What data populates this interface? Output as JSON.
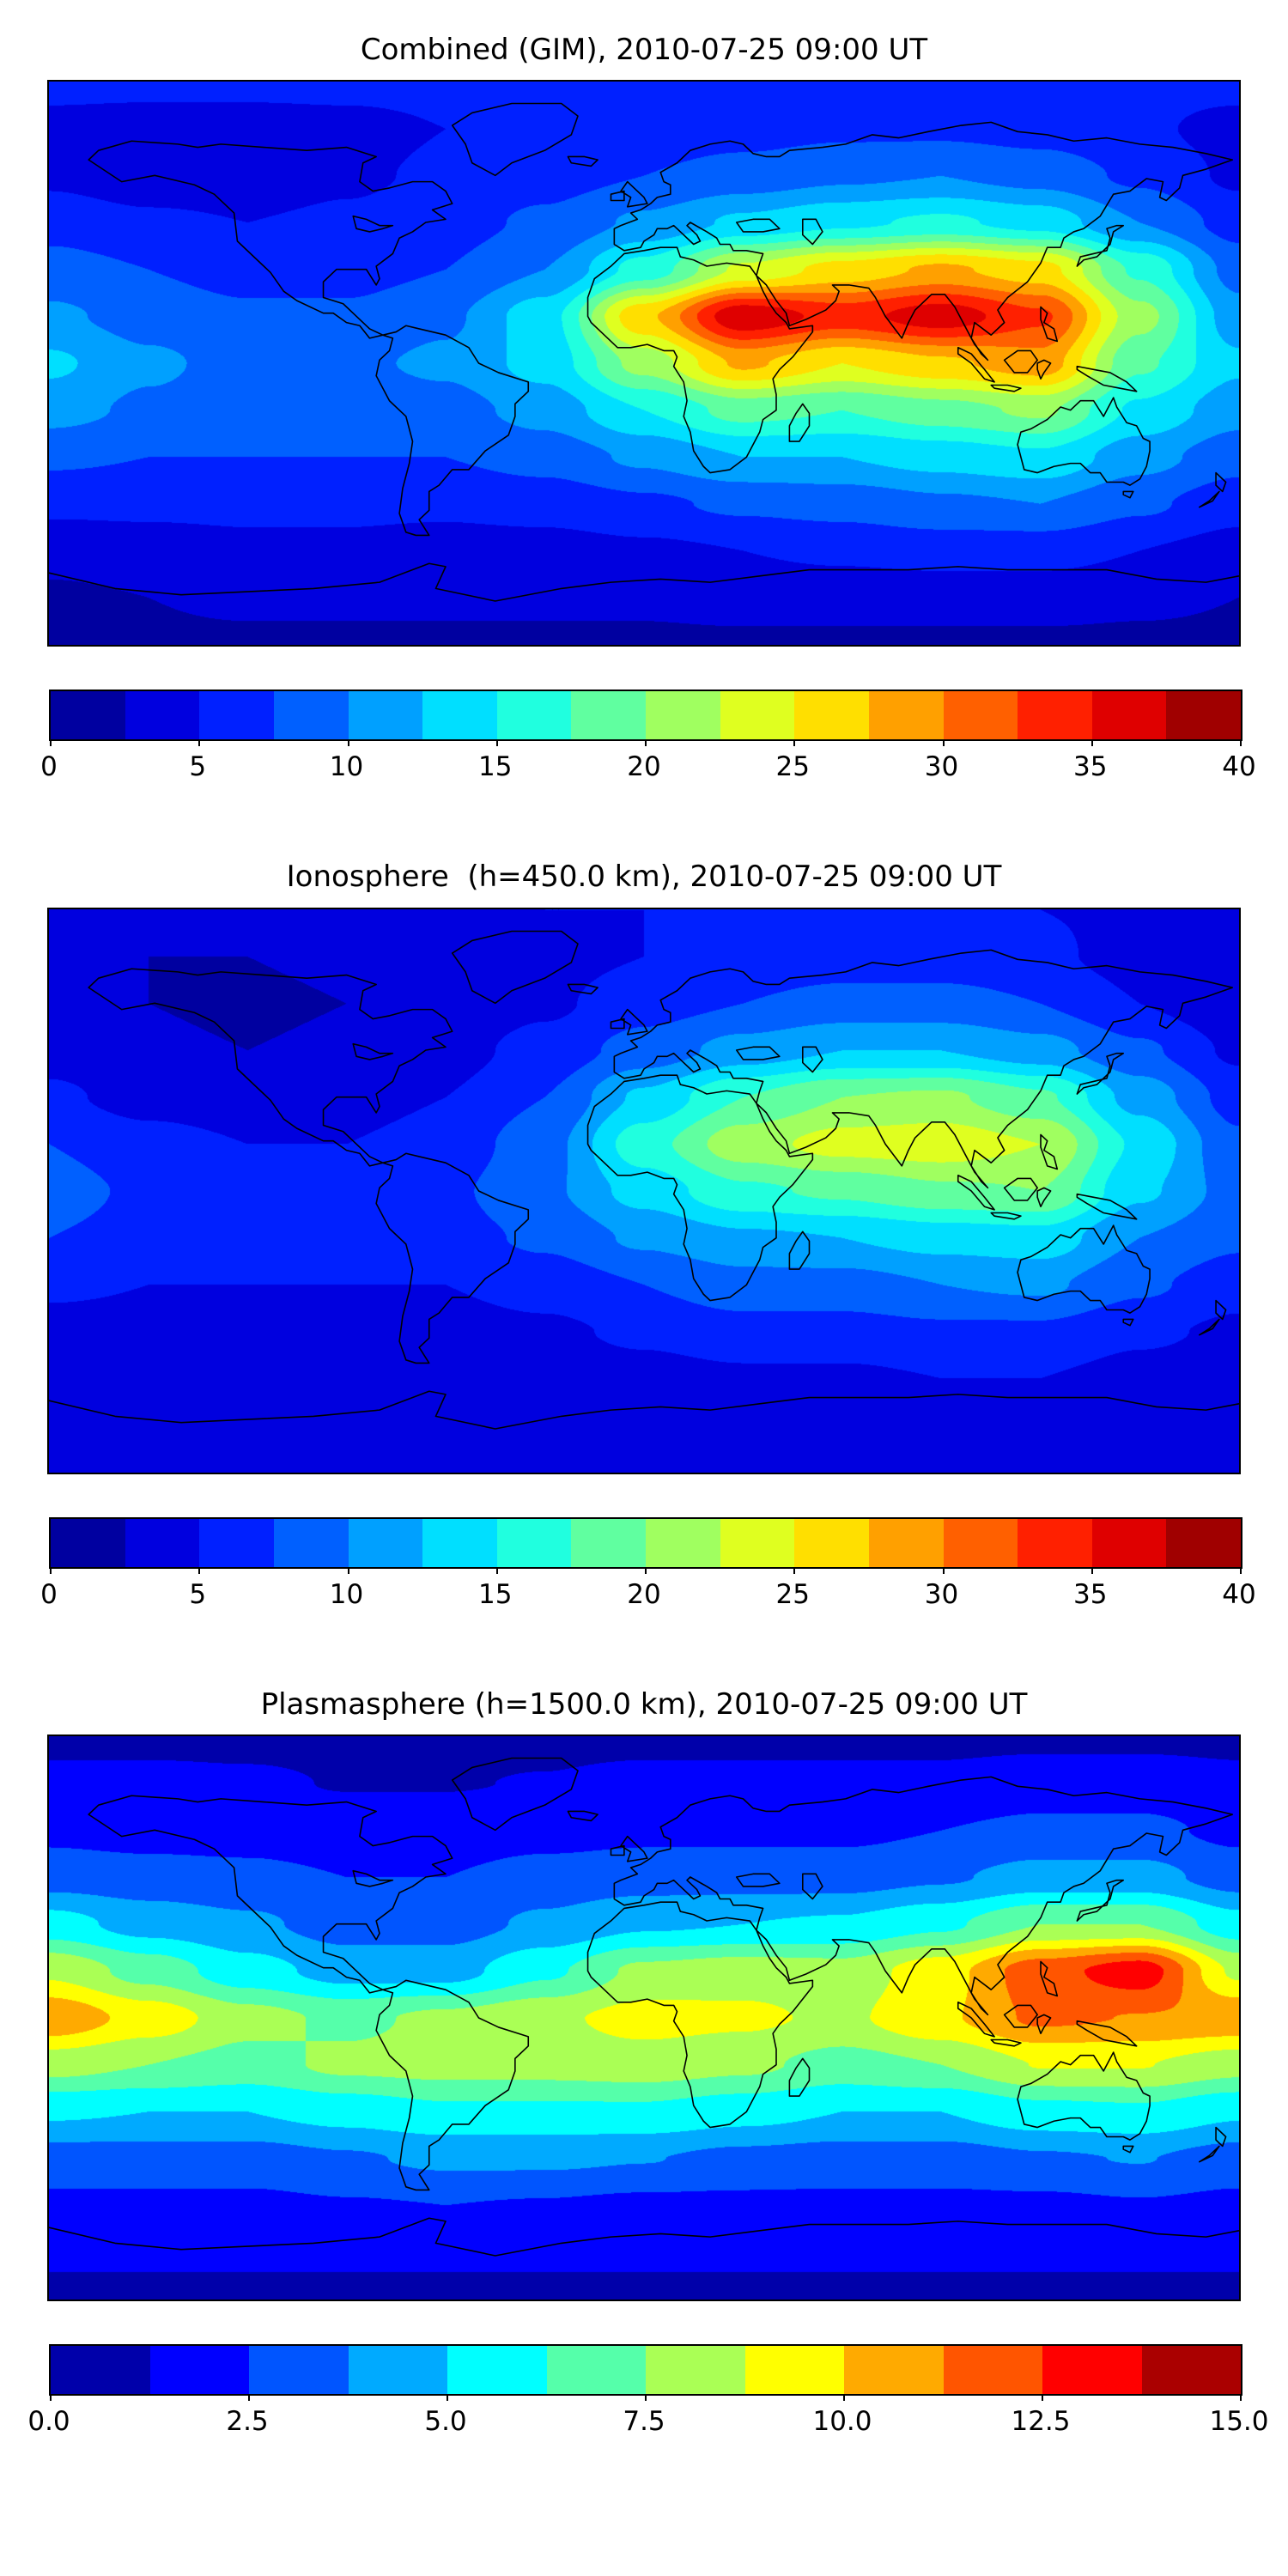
{
  "page": {
    "background": "#ffffff",
    "text_color": "#000000",
    "coastline_color": "#000000"
  },
  "chart_data": [
    {
      "type": "heatmap",
      "chart_kind": "filled-contour global TEC map, equirectangular projection with coastlines",
      "title": "Combined (GIM), 2010-07-25 09:00 UT",
      "x_range": [
        -180,
        180
      ],
      "y_range": [
        -90,
        90
      ],
      "grid": {
        "lons": [
          -180,
          -150,
          -120,
          -90,
          -60,
          -30,
          0,
          30,
          60,
          90,
          120,
          150,
          180
        ],
        "lats": [
          90,
          75,
          60,
          45,
          30,
          15,
          0,
          -15,
          -30,
          -45,
          -60,
          -75,
          -90
        ],
        "values": [
          [
            6,
            6,
            6,
            6,
            6,
            6,
            6,
            6,
            6,
            6,
            6,
            6,
            6
          ],
          [
            4,
            3.5,
            3.5,
            4,
            5,
            5.5,
            6,
            6.5,
            7,
            7,
            6.5,
            5.5,
            4
          ],
          [
            4.5,
            3.5,
            3.5,
            4.5,
            5.5,
            6.5,
            7.5,
            8.5,
            9.5,
            10,
            9,
            7,
            4.5
          ],
          [
            6.5,
            5.5,
            5,
            5.5,
            6.5,
            8,
            10.5,
            13,
            14.5,
            15.5,
            14,
            10,
            6.5
          ],
          [
            8.5,
            7.5,
            6.5,
            6.5,
            7.5,
            10,
            16,
            23,
            26,
            28,
            26,
            17,
            9
          ],
          [
            10.5,
            9,
            8,
            8,
            9.5,
            14,
            27,
            37,
            34,
            36.5,
            33,
            21,
            11
          ],
          [
            13,
            10.5,
            9,
            9.5,
            10.5,
            13.5,
            21,
            28,
            25,
            27,
            29,
            18,
            13
          ],
          [
            11,
            9.5,
            8.5,
            8.5,
            9,
            11,
            15,
            18.5,
            17.5,
            19,
            20.5,
            14.5,
            11
          ],
          [
            8,
            7.5,
            7.5,
            7.5,
            7.5,
            8.5,
            10.5,
            12.5,
            12.5,
            13.5,
            14.5,
            11,
            8.5
          ],
          [
            5.5,
            5.5,
            5.5,
            5.5,
            5.5,
            6,
            7,
            8,
            8.5,
            9.5,
            10,
            8,
            6
          ],
          [
            3.5,
            4,
            4.5,
            4.5,
            4,
            4,
            4.5,
            5,
            5.5,
            6,
            6,
            5,
            4
          ],
          [
            2,
            2.5,
            3,
            3,
            3,
            3,
            3,
            3.5,
            3.5,
            3.5,
            3.5,
            3,
            2.5
          ],
          [
            2,
            2,
            2,
            2,
            2,
            2,
            2,
            2,
            2,
            2,
            2,
            2,
            2
          ]
        ]
      },
      "colorbar": {
        "min": 0,
        "max": 40,
        "orientation": "horizontal",
        "tick_labels": [
          "0",
          "5",
          "10",
          "15",
          "20",
          "25",
          "30",
          "35",
          "40"
        ],
        "colors": [
          "#0000A0",
          "#0000DF",
          "#0020FF",
          "#0060FF",
          "#00A0FF",
          "#00DFFF",
          "#20FFDF",
          "#60FFA0",
          "#A0FF60",
          "#DFFF20",
          "#FFDF00",
          "#FFA000",
          "#FF6000",
          "#FF2000",
          "#DF0000",
          "#A00000"
        ]
      },
      "description": "Strong daytime TEC enhancement band over Africa through South/East Asia (about 0-30N, 0-140E) with red maxima near 15N 20E and 15N 95E (~35-38); dark lows over polar caps and southern high latitudes."
    },
    {
      "type": "heatmap",
      "chart_kind": "filled-contour global TEC map, equirectangular projection with coastlines",
      "title": "Ionosphere  (h=450.0 km), 2010-07-25 09:00 UT",
      "x_range": [
        -180,
        180
      ],
      "y_range": [
        -90,
        90
      ],
      "grid": {
        "lons": [
          -180,
          -150,
          -120,
          -90,
          -60,
          -30,
          0,
          30,
          60,
          90,
          120,
          150,
          180
        ],
        "lats": [
          90,
          75,
          60,
          45,
          30,
          15,
          0,
          -15,
          -30,
          -45,
          -60,
          -75,
          -90
        ],
        "values": [
          [
            4.5,
            4.5,
            4.5,
            4.5,
            4.5,
            5,
            5,
            5.5,
            5.5,
            5.5,
            5,
            4.5,
            4.5
          ],
          [
            3,
            2.5,
            2.5,
            3,
            3.5,
            4,
            5,
            5.5,
            6,
            6,
            5.5,
            4,
            3
          ],
          [
            3,
            2.5,
            2,
            2.5,
            3,
            4.5,
            6.5,
            7.5,
            8.5,
            8.5,
            7.5,
            5,
            3
          ],
          [
            4,
            3,
            2.5,
            3,
            4,
            6,
            8.5,
            11,
            12.5,
            12.5,
            11,
            8,
            4.5
          ],
          [
            5.5,
            4,
            3.5,
            4,
            5,
            7.5,
            13,
            17.5,
            20,
            20.5,
            18,
            11.5,
            6.5
          ],
          [
            7.5,
            6,
            5,
            5,
            6,
            9,
            16.5,
            21.5,
            23.5,
            24,
            22.5,
            14.5,
            8
          ],
          [
            8.5,
            7,
            6,
            6,
            7,
            9.5,
            13.5,
            17,
            18,
            19.5,
            20,
            13,
            9
          ],
          [
            7.5,
            6.5,
            6,
            6,
            6.5,
            8,
            10.5,
            12,
            12.5,
            13.5,
            14,
            10,
            8
          ],
          [
            5.5,
            5,
            5,
            5,
            5,
            6,
            7.5,
            9,
            9,
            10,
            10.5,
            8,
            6
          ],
          [
            4,
            4,
            4,
            4,
            4,
            4.5,
            5.5,
            6.5,
            6.5,
            7,
            7,
            5.5,
            4.5
          ],
          [
            3,
            3,
            3.5,
            3.5,
            3.5,
            3.5,
            4,
            4.5,
            4.5,
            5,
            5,
            4,
            3.5
          ],
          [
            2.5,
            3,
            3,
            3,
            3,
            3,
            3,
            3.5,
            3.5,
            3.5,
            3.5,
            3,
            3
          ],
          [
            3,
            3,
            3,
            3,
            3,
            3,
            3,
            3,
            3,
            3,
            3,
            3,
            3
          ]
        ]
      },
      "colorbar": {
        "min": 0,
        "max": 40,
        "orientation": "horizontal",
        "tick_labels": [
          "0",
          "5",
          "10",
          "15",
          "20",
          "25",
          "30",
          "35",
          "40"
        ],
        "colors": [
          "#0000A0",
          "#0000DF",
          "#0020FF",
          "#0060FF",
          "#00A0FF",
          "#00DFFF",
          "#20FFDF",
          "#60FFA0",
          "#A0FF60",
          "#DFFF20",
          "#FFDF00",
          "#FFA000",
          "#FF6000",
          "#FF2000",
          "#DF0000",
          "#A00000"
        ]
      },
      "description": "Ionospheric part only: moderate enhancement (up to ~24, yellow-green) over Africa-Middle East-India around 10-25N; large dark-blue minimum over the night-side western hemisphere and poles."
    },
    {
      "type": "heatmap",
      "chart_kind": "filled-contour global TEC map, equirectangular projection with coastlines",
      "title": "Plasmasphere (h=1500.0 km), 2010-07-25 09:00 UT",
      "x_range": [
        -180,
        180
      ],
      "y_range": [
        -90,
        90
      ],
      "grid": {
        "lons": [
          -180,
          -150,
          -120,
          -90,
          -60,
          -30,
          0,
          30,
          60,
          90,
          120,
          150,
          180
        ],
        "lats": [
          90,
          75,
          60,
          45,
          30,
          15,
          0,
          -15,
          -30,
          -45,
          -60,
          -75,
          -90
        ],
        "values": [
          [
            1,
            1,
            1,
            1,
            1,
            1,
            1,
            1,
            1,
            1,
            1,
            1,
            1
          ],
          [
            1.5,
            1.5,
            1.4,
            1.2,
            1.2,
            1.3,
            1.5,
            1.5,
            1.5,
            1.5,
            1.8,
            1.8,
            1.5
          ],
          [
            2.2,
            2,
            2,
            1.8,
            1.8,
            2,
            2.2,
            2.2,
            2.2,
            2.5,
            2.8,
            2.8,
            2.2
          ],
          [
            3.2,
            3,
            2.8,
            2.5,
            2.5,
            3,
            3.2,
            3.2,
            3.2,
            3.6,
            4.2,
            4.2,
            3.2
          ],
          [
            5.5,
            4.5,
            4,
            3.2,
            3.2,
            4,
            4.8,
            5,
            5.2,
            6,
            7.5,
            7.5,
            5.5
          ],
          [
            8.5,
            7,
            5.5,
            4.5,
            4.5,
            6,
            7.8,
            8.2,
            8,
            9.5,
            12,
            13.2,
            8.5
          ],
          [
            11,
            9.5,
            8,
            7.2,
            7.8,
            8.5,
            9.2,
            9,
            8.5,
            9.8,
            11.5,
            11.2,
            11
          ],
          [
            8,
            7.5,
            7,
            7.8,
            8,
            8,
            8.2,
            7.8,
            7,
            7.5,
            8.8,
            8.8,
            8
          ],
          [
            5.2,
            5,
            5,
            5.5,
            6,
            6,
            6,
            5.5,
            5,
            5,
            5.8,
            6,
            5.2
          ],
          [
            3.2,
            3.2,
            3.2,
            3.6,
            4,
            4,
            3.8,
            3.4,
            3.2,
            3.2,
            3.6,
            3.8,
            3.2
          ],
          [
            2.2,
            2.2,
            2.2,
            2.4,
            2.5,
            2.4,
            2.2,
            2.2,
            2.2,
            2.2,
            2.2,
            2.4,
            2.2
          ],
          [
            1.4,
            1.4,
            1.4,
            1.4,
            1.4,
            1.4,
            1.4,
            1.4,
            1.4,
            1.4,
            1.4,
            1.4,
            1.4
          ],
          [
            1,
            1,
            1,
            1,
            1,
            1,
            1,
            1,
            1,
            1,
            1,
            1,
            1
          ]
        ]
      },
      "colorbar": {
        "min": 0,
        "max": 15,
        "orientation": "horizontal",
        "tick_labels": [
          "0.0",
          "2.5",
          "5.0",
          "7.5",
          "10.0",
          "12.5",
          "15.0"
        ],
        "colors": [
          "#0000AA",
          "#0000FF",
          "#0055FF",
          "#00AAFF",
          "#00FFFF",
          "#55FFAA",
          "#AAFF55",
          "#FFFF00",
          "#FFAA00",
          "#FF5500",
          "#FF0000",
          "#AA0000"
        ]
      },
      "description": "Plasmaspheric contribution: wavy equatorial band (cyan/green-yellow) around the magnetic equator, orange maxima near the western Pacific edge (~0N 170W) and over Southeast Asia with a dark-red core near 15N 140E (~13); dark-blue lows poleward of ~45 deg."
    }
  ]
}
